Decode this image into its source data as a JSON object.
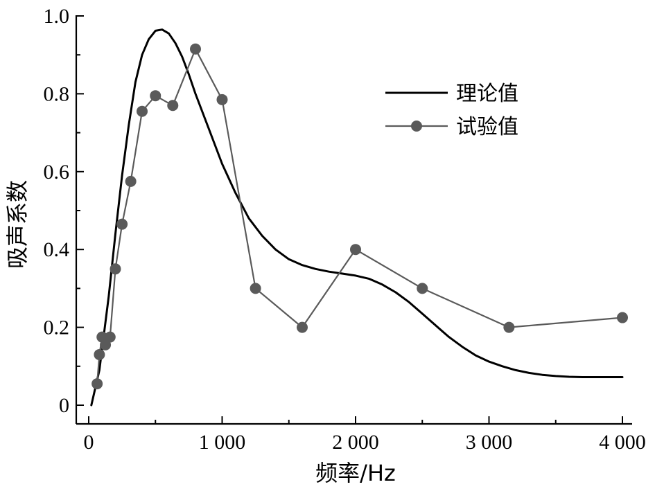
{
  "chart_data": {
    "type": "line",
    "xlabel": "频率/Hz",
    "ylabel": "吸声系数",
    "xlim": [
      0,
      4000
    ],
    "ylim": [
      0,
      1.0
    ],
    "x_ticks": [
      0,
      1000,
      2000,
      3000,
      4000
    ],
    "x_tick_labels": [
      "0",
      "1 000",
      "2 000",
      "3 000",
      "4 000"
    ],
    "y_ticks": [
      0,
      0.2,
      0.4,
      0.6,
      0.8,
      1.0
    ],
    "y_tick_labels": [
      "0",
      "0.2",
      "0.4",
      "0.6",
      "0.8",
      "1.0"
    ],
    "legend_position": "top-right",
    "grid": false,
    "series": [
      {
        "name": "理论值",
        "style": "line",
        "color": "#000000",
        "x": [
          20,
          80,
          150,
          200,
          250,
          300,
          350,
          400,
          450,
          500,
          550,
          600,
          650,
          700,
          750,
          800,
          900,
          1000,
          1100,
          1200,
          1300,
          1400,
          1500,
          1600,
          1700,
          1800,
          1900,
          2000,
          2100,
          2200,
          2300,
          2400,
          2500,
          2600,
          2700,
          2800,
          2900,
          3000,
          3100,
          3200,
          3300,
          3400,
          3500,
          3600,
          3700,
          3800,
          3900,
          4000
        ],
        "y": [
          0.0,
          0.09,
          0.28,
          0.44,
          0.59,
          0.72,
          0.83,
          0.9,
          0.94,
          0.962,
          0.965,
          0.955,
          0.93,
          0.895,
          0.85,
          0.8,
          0.71,
          0.62,
          0.545,
          0.48,
          0.435,
          0.4,
          0.375,
          0.36,
          0.35,
          0.343,
          0.338,
          0.333,
          0.325,
          0.31,
          0.29,
          0.265,
          0.235,
          0.205,
          0.175,
          0.15,
          0.128,
          0.112,
          0.1,
          0.09,
          0.083,
          0.078,
          0.075,
          0.073,
          0.072,
          0.072,
          0.072,
          0.072
        ]
      },
      {
        "name": "试验值",
        "style": "line-markers",
        "color": "#5a5a5a",
        "x": [
          63,
          80,
          100,
          125,
          160,
          200,
          250,
          315,
          400,
          500,
          630,
          800,
          1000,
          1250,
          1600,
          2000,
          2500,
          3150,
          4000
        ],
        "y": [
          0.055,
          0.13,
          0.175,
          0.155,
          0.175,
          0.35,
          0.465,
          0.575,
          0.755,
          0.795,
          0.77,
          0.915,
          0.785,
          0.3,
          0.2,
          0.4,
          0.3,
          0.2,
          0.225
        ]
      }
    ]
  }
}
